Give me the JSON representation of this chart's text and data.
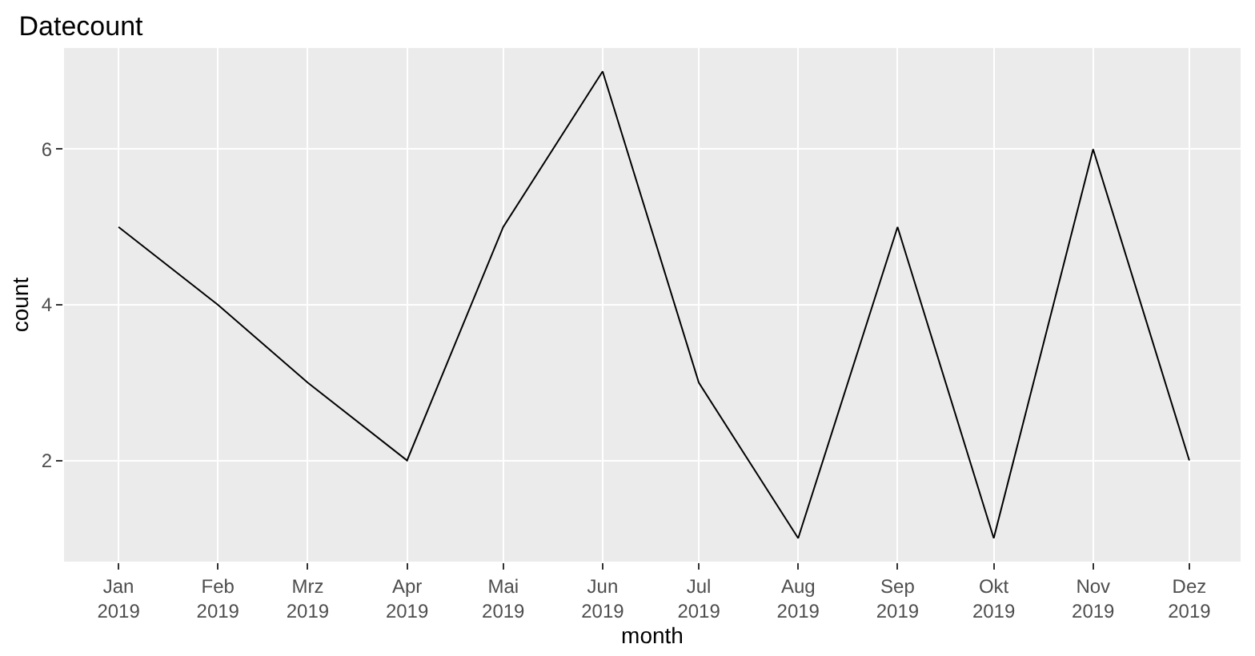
{
  "chart_data": {
    "type": "line",
    "title": "Datecount",
    "xlabel": "month",
    "ylabel": "count",
    "x": [
      "2019-01",
      "2019-02",
      "2019-03",
      "2019-04",
      "2019-05",
      "2019-06",
      "2019-07",
      "2019-08",
      "2019-09",
      "2019-10",
      "2019-11",
      "2019-12"
    ],
    "series": [
      {
        "color": "#000000",
        "values": [
          5,
          4,
          3,
          2,
          5,
          7,
          3,
          1,
          5,
          1,
          6,
          2
        ]
      }
    ],
    "xlim": [
      "2018-12-15",
      "2019-12-17"
    ],
    "xticks": [
      {
        "value": "2019-01",
        "label": "Jan\n2019"
      },
      {
        "value": "2019-02",
        "label": "Feb\n2019"
      },
      {
        "value": "2019-03",
        "label": "Mrz\n2019"
      },
      {
        "value": "2019-04",
        "label": "Apr\n2019"
      },
      {
        "value": "2019-05",
        "label": "Mai\n2019"
      },
      {
        "value": "2019-06",
        "label": "Jun\n2019"
      },
      {
        "value": "2019-07",
        "label": "Jul\n2019"
      },
      {
        "value": "2019-08",
        "label": "Aug\n2019"
      },
      {
        "value": "2019-09",
        "label": "Sep\n2019"
      },
      {
        "value": "2019-10",
        "label": "Okt\n2019"
      },
      {
        "value": "2019-11",
        "label": "Nov\n2019"
      },
      {
        "value": "2019-12",
        "label": "Dez\n2019"
      }
    ],
    "ylim": [
      0.7,
      7.3
    ],
    "yticks": [
      2,
      4,
      6
    ],
    "grid": true,
    "legend": false,
    "marker": "none",
    "line_style": "solid"
  }
}
